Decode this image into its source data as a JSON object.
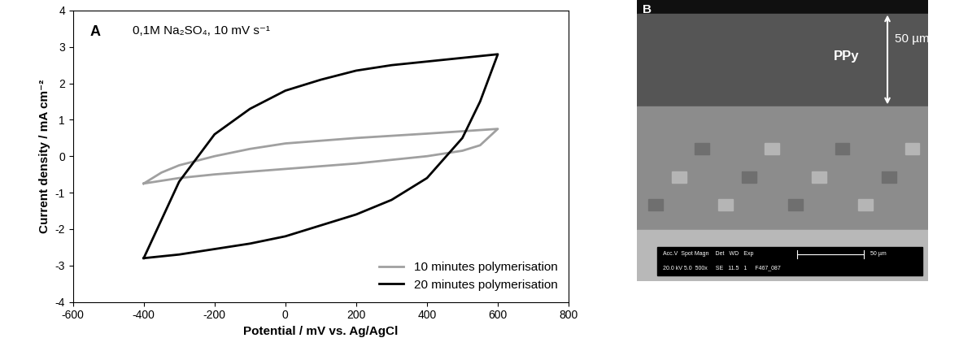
{
  "chart_data": {
    "type": "line",
    "panel_label": "A",
    "annotation": "0,1M Na₂SO₄, 10 mV s⁻¹",
    "x_label": "Potential / mV vs. Ag/AgCl",
    "y_label": "Current density / mA cm⁻²",
    "xlim": [
      -600,
      800
    ],
    "xticks": [
      -600,
      -400,
      -200,
      0,
      200,
      400,
      600,
      800
    ],
    "ylim": [
      -4,
      4
    ],
    "yticks": [
      -4,
      -3,
      -2,
      -1,
      0,
      1,
      2,
      3,
      4
    ],
    "grid": false,
    "legend": "lower right",
    "series": [
      {
        "name": "10 minutes polymerisation",
        "color": "#a0a0a0",
        "x": [
          -400,
          -350,
          -300,
          -200,
          -100,
          0,
          200,
          400,
          600,
          550,
          500,
          400,
          200,
          0,
          -200,
          -300,
          -400
        ],
        "values": [
          -0.75,
          -0.45,
          -0.25,
          0.0,
          0.2,
          0.35,
          0.5,
          0.62,
          0.75,
          0.3,
          0.15,
          0.0,
          -0.2,
          -0.35,
          -0.5,
          -0.6,
          -0.75
        ]
      },
      {
        "name": "20 minutes polymerisation",
        "color": "#000000",
        "x": [
          -400,
          -300,
          -200,
          -100,
          0,
          100,
          200,
          300,
          400,
          500,
          600,
          550,
          500,
          400,
          300,
          200,
          100,
          0,
          -100,
          -200,
          -300,
          -400
        ],
        "values": [
          -2.8,
          -0.7,
          0.6,
          1.3,
          1.8,
          2.1,
          2.35,
          2.5,
          2.6,
          2.7,
          2.8,
          1.5,
          0.5,
          -0.6,
          -1.2,
          -1.6,
          -1.9,
          -2.2,
          -2.4,
          -2.55,
          -2.7,
          -2.8
        ]
      }
    ]
  },
  "image_panel": {
    "label": "B",
    "layer_label": "PPy",
    "thickness_label": "50 µm",
    "info_bar": {
      "header": "Acc.V  Spot Magn    Det   WD   Exp",
      "values": "20.0 kV 5.0  500x     SE   11.5   1     F467_087",
      "scale_bar": "50 µm"
    }
  }
}
